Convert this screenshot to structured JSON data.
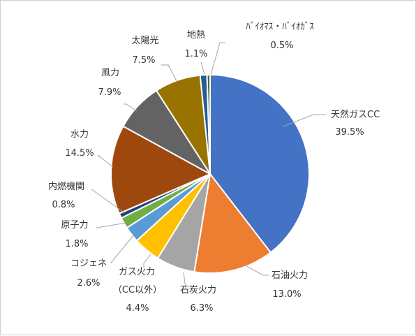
{
  "chart_data": {
    "type": "pie",
    "title": "",
    "unit": "%",
    "start_angle_deg": 0,
    "direction": "clockwise",
    "legend": "none",
    "slices": [
      {
        "label": "天然ガスCC",
        "value": 39.5,
        "value_text": "39.5%",
        "color": "#4472C4"
      },
      {
        "label": "石油火力",
        "value": 13.0,
        "value_text": "13.0%",
        "color": "#ED7D31"
      },
      {
        "label": "石炭火力",
        "value": 6.3,
        "value_text": "6.3%",
        "color": "#A5A5A5"
      },
      {
        "label": "ガス火力",
        "label2": "（CC以外）",
        "value": 4.4,
        "value_text": "4.4%",
        "color": "#FFC000"
      },
      {
        "label": "コジェネ",
        "value": 2.6,
        "value_text": "2.6%",
        "color": "#5B9BD5"
      },
      {
        "label": "原子力",
        "value": 1.8,
        "value_text": "1.8%",
        "color": "#70AD47"
      },
      {
        "label": "内燃機関",
        "value": 0.8,
        "value_text": "0.8%",
        "color": "#264478"
      },
      {
        "label": "水力",
        "value": 14.5,
        "value_text": "14.5%",
        "color": "#9E480E"
      },
      {
        "label": "風力",
        "value": 7.9,
        "value_text": "7.9%",
        "color": "#636363"
      },
      {
        "label": "太陽光",
        "value": 7.5,
        "value_text": "7.5%",
        "color": "#997300"
      },
      {
        "label": "地熱",
        "value": 1.1,
        "value_text": "1.1%",
        "color": "#255E91"
      },
      {
        "label": "ﾊﾞｲｵﾏｽ・ﾊﾞｲｵｶﾞｽ",
        "value": 0.5,
        "value_text": "0.5%",
        "color": "#43682B"
      }
    ]
  }
}
